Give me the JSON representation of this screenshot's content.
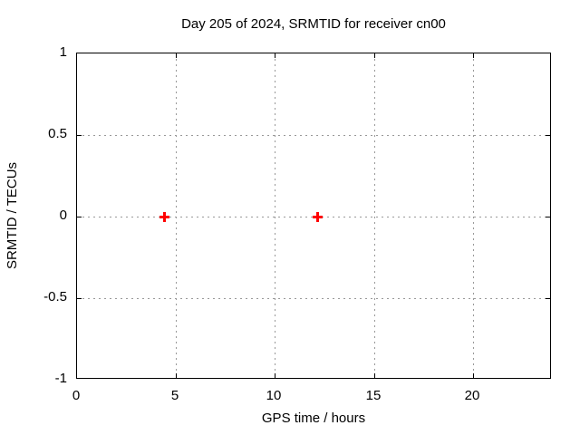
{
  "colors": {
    "background": "#ffffff",
    "axis": "#000000",
    "grid": "#999999",
    "marker": "#ff0000"
  },
  "chart_data": {
    "type": "scatter",
    "title": "Day 205 of 2024, SRMTID for receiver cn00",
    "xlabel": "GPS time / hours",
    "ylabel": "SRMTID / TECUs",
    "xlim": [
      0,
      24
    ],
    "ylim": [
      -1,
      1
    ],
    "xticks": [
      0,
      5,
      10,
      15,
      20
    ],
    "xtick_labels": [
      "0",
      "5",
      "10",
      "15",
      "20"
    ],
    "yticks": [
      -1,
      -0.5,
      0,
      0.5,
      1
    ],
    "ytick_labels": [
      "-1",
      "-0.5",
      "0",
      "0.5",
      "1"
    ],
    "grid": true,
    "grid_style": "dashed",
    "legend": false,
    "series": [
      {
        "name": "SRMTID",
        "marker": "plus",
        "color": "#ff0000",
        "points": [
          {
            "x": 4.4,
            "y": 0
          },
          {
            "x": 12.15,
            "y": 0
          }
        ]
      }
    ]
  }
}
